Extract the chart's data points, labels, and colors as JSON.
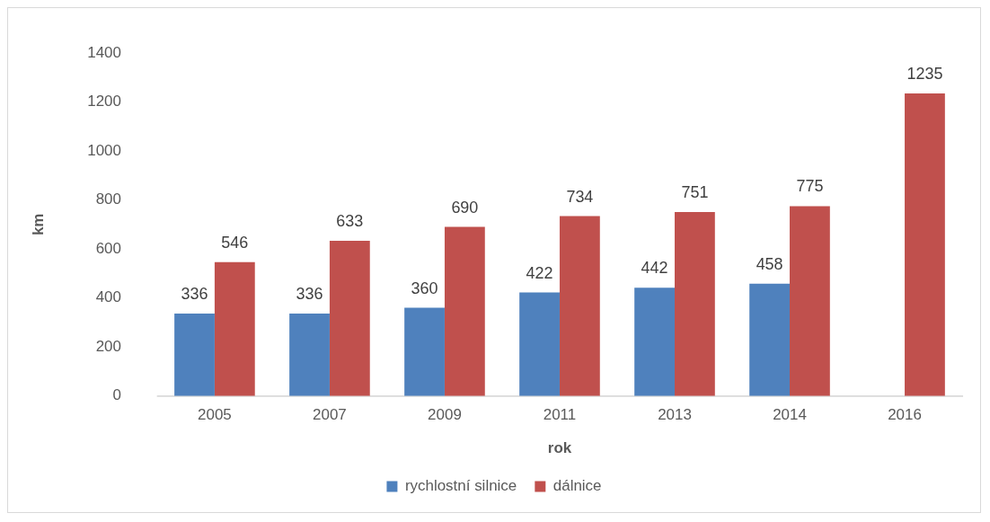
{
  "chart_data": {
    "type": "bar",
    "xlabel": "rok",
    "ylabel": "km",
    "categories": [
      "2005",
      "2007",
      "2009",
      "2011",
      "2013",
      "2014",
      "2016"
    ],
    "series": [
      {
        "name": "rychlostní silnice",
        "color": "#4f81bd",
        "values": [
          336,
          336,
          360,
          422,
          442,
          458,
          null
        ]
      },
      {
        "name": "dálnice",
        "color": "#c0504d",
        "values": [
          546,
          633,
          690,
          734,
          751,
          775,
          1235
        ]
      }
    ],
    "ylim": [
      0,
      1400
    ],
    "yticks": [
      0,
      200,
      400,
      600,
      800,
      1000,
      1200,
      1400
    ],
    "grid": false,
    "legend": "bottom",
    "data_labels": true
  }
}
